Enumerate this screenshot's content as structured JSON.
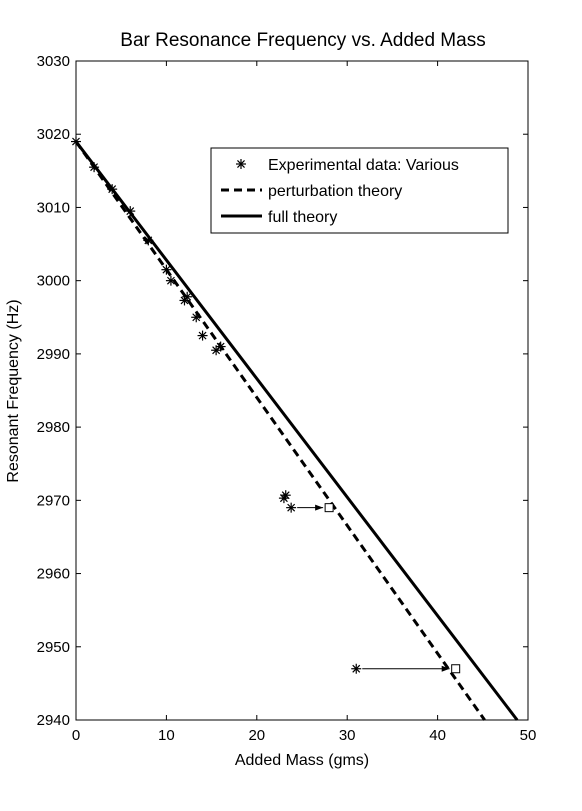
{
  "chart_data": {
    "type": "line",
    "title": "Bar Resonance Frequency vs. Added Mass",
    "xlabel": "Added Mass (gms)",
    "ylabel": "Resonant Frequency (Hz)",
    "xlim": [
      0,
      50
    ],
    "ylim": [
      2940,
      3030
    ],
    "xticks": [
      0,
      10,
      20,
      30,
      40,
      50
    ],
    "yticks": [
      2940,
      2950,
      2960,
      2970,
      2980,
      2990,
      3000,
      3010,
      3020,
      3030
    ],
    "grid": false,
    "legend_position": "top-right",
    "series": [
      {
        "name": "Experimental data: Various",
        "style": "asterisk",
        "x": [
          0,
          2,
          4,
          6,
          8,
          10,
          10.5,
          12,
          12.3,
          13.3,
          14,
          15.5,
          16,
          23,
          23.2,
          23.8,
          31
        ],
        "y": [
          3019,
          3015.5,
          3012.5,
          3009.5,
          3005.5,
          3001.5,
          3000,
          2997.3,
          2997.8,
          2995,
          2992.5,
          2990.5,
          2991,
          2970.3,
          2970.7,
          2969,
          2947
        ]
      },
      {
        "name": "perturbation theory",
        "style": "dashed",
        "x": [
          0,
          45.2
        ],
        "y": [
          3019,
          2940
        ]
      },
      {
        "name": "full theory",
        "style": "solid",
        "x": [
          0,
          48.8
        ],
        "y": [
          3019,
          2940
        ]
      }
    ],
    "annotations": [
      {
        "type": "arrow",
        "from": [
          23.8,
          2969
        ],
        "to": [
          28,
          2969
        ],
        "marker": "square"
      },
      {
        "type": "arrow",
        "from": [
          31,
          2947
        ],
        "to": [
          42,
          2947
        ],
        "marker": "square"
      }
    ],
    "colors": {
      "line": "#000000",
      "background": "#ffffff"
    }
  }
}
